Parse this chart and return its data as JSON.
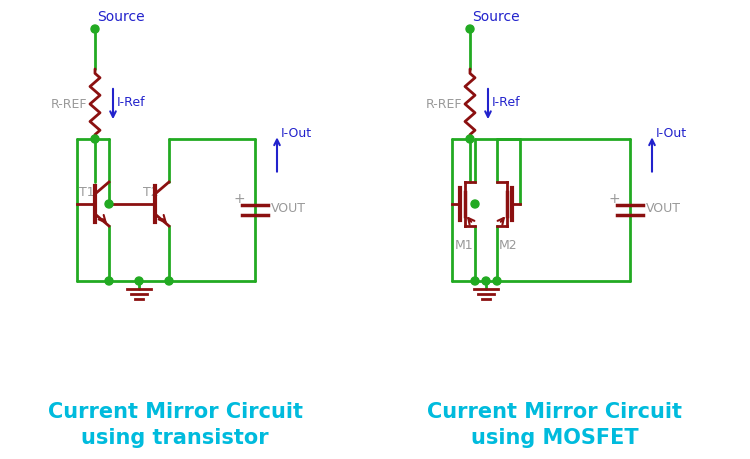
{
  "bg_color": "#ffffff",
  "green": "#22aa22",
  "dark_red": "#8b1010",
  "blue": "#2222cc",
  "gray": "#999999",
  "title_color": "#00bbdd",
  "title1_line1": "Current Mirror Circuit",
  "title1_line2": "using transistor",
  "title2_line1": "Current Mirror Circuit",
  "title2_line2": "using MOSFET",
  "title_fontsize": 15
}
